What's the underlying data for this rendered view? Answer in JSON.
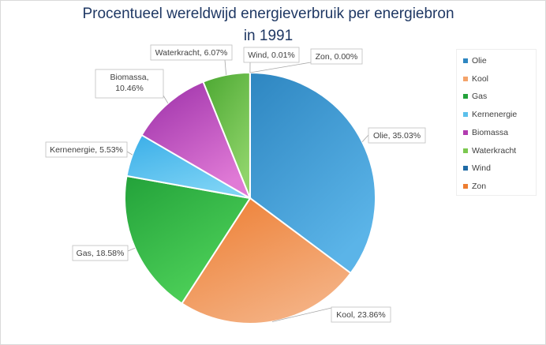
{
  "chart_data": {
    "type": "pie",
    "title_line1": "Procentueel wereldwijd energieverbruik per energiebron",
    "title_line2": "in 1991",
    "slices": [
      {
        "name": "Olie",
        "value": 35.03,
        "label": "Olie, 35.03%",
        "color": "#2e86c1",
        "light": "#5bb4e8"
      },
      {
        "name": "Kool",
        "value": 23.86,
        "label": "Kool, 23.86%",
        "color": "#ed7d31",
        "light": "#f4b183"
      },
      {
        "name": "Gas",
        "value": 18.58,
        "label": "Gas, 18.58%",
        "color": "#23a23a",
        "light": "#4fd25a"
      },
      {
        "name": "Kernenergie",
        "value": 5.53,
        "label": "Kernenergie, 5.53%",
        "color": "#3aaee8",
        "light": "#7dd3f5"
      },
      {
        "name": "Biomassa",
        "value": 10.46,
        "label": "Biomassa, 10.46%",
        "label_lines": [
          "Biomassa,",
          "10.46%"
        ],
        "color": "#9b2fa8",
        "light": "#e07ad6"
      },
      {
        "name": "Waterkracht",
        "value": 6.07,
        "label": "Waterkracht, 6.07%",
        "color": "#4ca832",
        "light": "#8fd46a"
      },
      {
        "name": "Wind",
        "value": 0.01,
        "label": "Wind, 0.01%",
        "color": "#1f6aa5",
        "light": "#2e86c1"
      },
      {
        "name": "Zon",
        "value": 0.0,
        "label": "Zon, 0.00%",
        "color": "#e46c2c",
        "light": "#ed7d31"
      }
    ],
    "legend": [
      "Olie",
      "Kool",
      "Gas",
      "Kernenergie",
      "Biomassa",
      "Waterkracht",
      "Wind",
      "Zon"
    ],
    "legend_colors": [
      "#2e86c1",
      "#f4a36a",
      "#23a23a",
      "#5bc0eb",
      "#b23cb0",
      "#7cc850",
      "#1f6aa5",
      "#ed7d31"
    ],
    "legend_position": "right"
  }
}
